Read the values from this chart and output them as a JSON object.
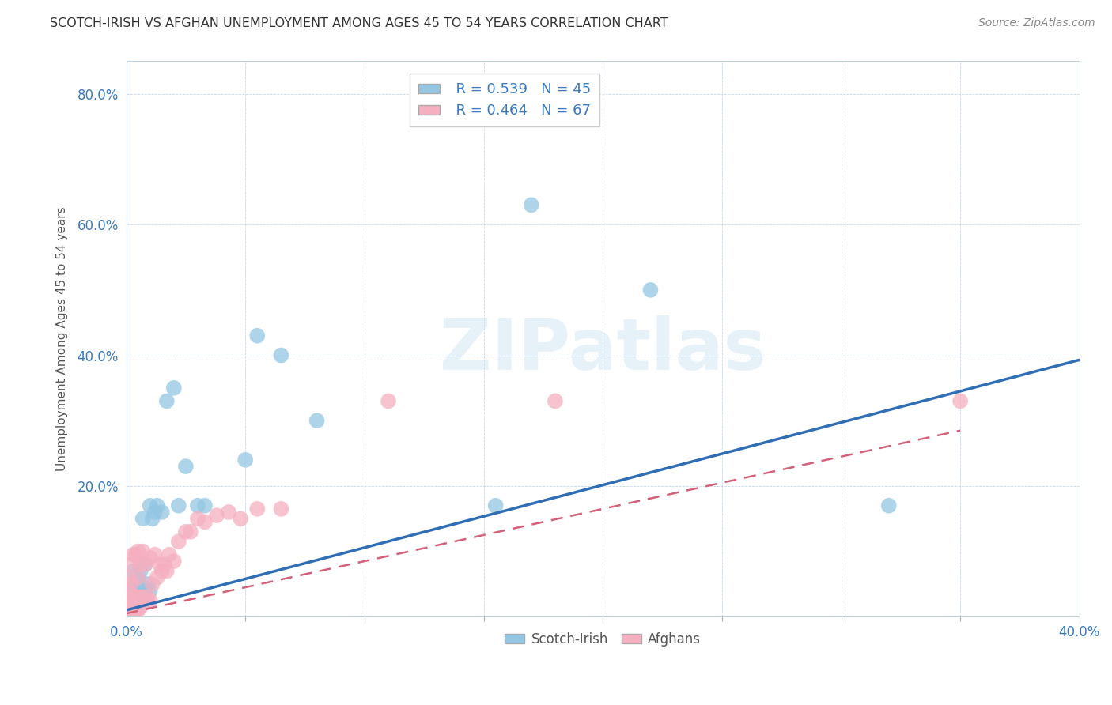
{
  "title": "SCOTCH-IRISH VS AFGHAN UNEMPLOYMENT AMONG AGES 45 TO 54 YEARS CORRELATION CHART",
  "source": "Source: ZipAtlas.com",
  "ylabel": "Unemployment Among Ages 45 to 54 years",
  "xlim": [
    0,
    0.4
  ],
  "ylim": [
    0,
    0.85
  ],
  "xtick_positions": [
    0.0,
    0.05,
    0.1,
    0.15,
    0.2,
    0.25,
    0.3,
    0.35,
    0.4
  ],
  "xtick_labels": [
    "0.0%",
    "",
    "",
    "",
    "",
    "",
    "",
    "",
    "40.0%"
  ],
  "ytick_positions": [
    0.0,
    0.2,
    0.4,
    0.6,
    0.8
  ],
  "ytick_labels": [
    "",
    "20.0%",
    "40.0%",
    "60.0%",
    "80.0%"
  ],
  "scotch_irish_R": 0.539,
  "scotch_irish_N": 45,
  "afghan_R": 0.464,
  "afghan_N": 67,
  "scotch_irish_color": "#93c6e3",
  "afghan_color": "#f5afc0",
  "scotch_irish_line_color": "#2f6db5",
  "afghan_line_color": "#d4607a",
  "background_color": "#ffffff",
  "watermark": "ZIPatlas",
  "scotch_irish_line_x": [
    0.0,
    0.4
  ],
  "scotch_irish_line_y": [
    0.01,
    0.393
  ],
  "afghan_line_x": [
    0.0,
    0.35
  ],
  "afghan_line_y": [
    0.005,
    0.285
  ],
  "scotch_irish_x": [
    0.001,
    0.001,
    0.001,
    0.002,
    0.002,
    0.002,
    0.002,
    0.003,
    0.003,
    0.003,
    0.003,
    0.004,
    0.004,
    0.004,
    0.005,
    0.005,
    0.005,
    0.006,
    0.006,
    0.006,
    0.007,
    0.007,
    0.008,
    0.008,
    0.009,
    0.01,
    0.01,
    0.011,
    0.012,
    0.013,
    0.015,
    0.017,
    0.02,
    0.022,
    0.025,
    0.03,
    0.033,
    0.05,
    0.055,
    0.065,
    0.08,
    0.155,
    0.17,
    0.22,
    0.32
  ],
  "scotch_irish_y": [
    0.01,
    0.02,
    0.03,
    0.01,
    0.02,
    0.03,
    0.04,
    0.01,
    0.02,
    0.04,
    0.07,
    0.02,
    0.03,
    0.05,
    0.02,
    0.03,
    0.06,
    0.02,
    0.04,
    0.07,
    0.03,
    0.15,
    0.04,
    0.08,
    0.05,
    0.04,
    0.17,
    0.15,
    0.16,
    0.17,
    0.16,
    0.33,
    0.35,
    0.17,
    0.23,
    0.17,
    0.17,
    0.24,
    0.43,
    0.4,
    0.3,
    0.17,
    0.63,
    0.5,
    0.17
  ],
  "afghan_x": [
    0.001,
    0.001,
    0.001,
    0.001,
    0.001,
    0.001,
    0.001,
    0.001,
    0.002,
    0.002,
    0.002,
    0.002,
    0.002,
    0.002,
    0.002,
    0.002,
    0.003,
    0.003,
    0.003,
    0.003,
    0.003,
    0.003,
    0.004,
    0.004,
    0.004,
    0.004,
    0.004,
    0.005,
    0.005,
    0.005,
    0.005,
    0.005,
    0.005,
    0.006,
    0.006,
    0.006,
    0.006,
    0.007,
    0.007,
    0.007,
    0.008,
    0.008,
    0.009,
    0.01,
    0.01,
    0.011,
    0.012,
    0.013,
    0.014,
    0.015,
    0.016,
    0.017,
    0.018,
    0.02,
    0.022,
    0.025,
    0.027,
    0.03,
    0.033,
    0.038,
    0.043,
    0.048,
    0.055,
    0.065,
    0.11,
    0.18,
    0.35
  ],
  "afghan_y": [
    0.005,
    0.01,
    0.015,
    0.02,
    0.025,
    0.03,
    0.04,
    0.06,
    0.005,
    0.01,
    0.015,
    0.02,
    0.025,
    0.03,
    0.05,
    0.08,
    0.005,
    0.01,
    0.015,
    0.02,
    0.03,
    0.095,
    0.01,
    0.015,
    0.02,
    0.03,
    0.095,
    0.01,
    0.015,
    0.02,
    0.03,
    0.06,
    0.1,
    0.015,
    0.02,
    0.03,
    0.08,
    0.02,
    0.03,
    0.1,
    0.025,
    0.08,
    0.03,
    0.025,
    0.09,
    0.05,
    0.095,
    0.06,
    0.08,
    0.07,
    0.08,
    0.07,
    0.095,
    0.085,
    0.115,
    0.13,
    0.13,
    0.15,
    0.145,
    0.155,
    0.16,
    0.15,
    0.165,
    0.165,
    0.33,
    0.33,
    0.33
  ]
}
